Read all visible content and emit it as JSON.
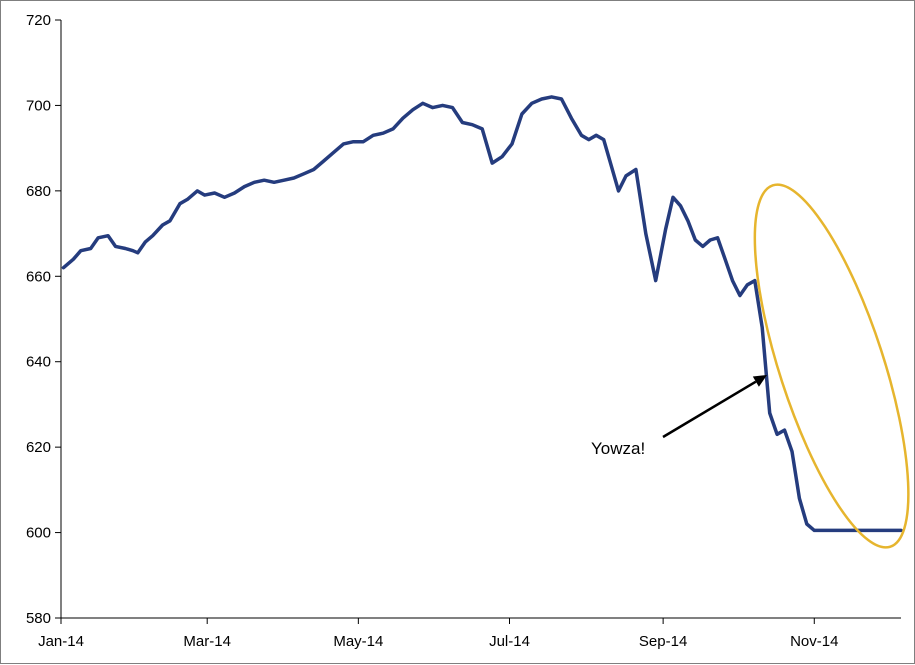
{
  "chart_data": {
    "type": "line",
    "title": "",
    "xlabel": "",
    "ylabel": "",
    "x_tick_labels": [
      "Jan-14",
      "Mar-14",
      "May-14",
      "Jul-14",
      "Sep-14",
      "Nov-14"
    ],
    "x_tick_days": [
      0,
      59,
      120,
      181,
      243,
      304
    ],
    "x_range_days": [
      0,
      339
    ],
    "y_ticks": [
      580,
      600,
      620,
      640,
      660,
      680,
      700,
      720
    ],
    "ylim": [
      580,
      720
    ],
    "grid": false,
    "legend": "none",
    "line_color": "#253C7E",
    "highlight_color": "#E6B52E",
    "annotation": {
      "text": "Yowza!",
      "arrow_color": "#000000"
    },
    "series": [
      {
        "x": [
          "2014-01-02",
          "2014-01-06",
          "2014-01-09",
          "2014-01-13",
          "2014-01-16",
          "2014-01-20",
          "2014-01-23",
          "2014-01-27",
          "2014-01-30",
          "2014-02-01",
          "2014-02-04",
          "2014-02-07",
          "2014-02-11",
          "2014-02-14",
          "2014-02-18",
          "2014-02-21",
          "2014-02-25",
          "2014-02-28",
          "2014-03-04",
          "2014-03-08",
          "2014-03-12",
          "2014-03-16",
          "2014-03-20",
          "2014-03-24",
          "2014-03-28",
          "2014-04-01",
          "2014-04-05",
          "2014-04-09",
          "2014-04-13",
          "2014-04-17",
          "2014-04-21",
          "2014-04-25",
          "2014-04-29",
          "2014-05-03",
          "2014-05-07",
          "2014-05-11",
          "2014-05-15",
          "2014-05-19",
          "2014-05-23",
          "2014-05-27",
          "2014-05-31",
          "2014-06-04",
          "2014-06-08",
          "2014-06-12",
          "2014-06-16",
          "2014-06-20",
          "2014-06-24",
          "2014-06-28",
          "2014-07-02",
          "2014-07-06",
          "2014-07-10",
          "2014-07-14",
          "2014-07-18",
          "2014-07-22",
          "2014-07-26",
          "2014-07-30",
          "2014-08-02",
          "2014-08-05",
          "2014-08-08",
          "2014-08-11",
          "2014-08-14",
          "2014-08-17",
          "2014-08-21",
          "2014-08-25",
          "2014-08-29",
          "2014-09-02",
          "2014-09-05",
          "2014-09-08",
          "2014-09-11",
          "2014-09-14",
          "2014-09-17",
          "2014-09-20",
          "2014-09-23",
          "2014-09-26",
          "2014-09-29",
          "2014-10-02",
          "2014-10-05",
          "2014-10-08",
          "2014-10-11",
          "2014-10-14",
          "2014-10-17",
          "2014-10-20",
          "2014-10-23",
          "2014-10-26",
          "2014-10-29",
          "2014-11-01",
          "2014-11-04",
          "2014-11-07",
          "2014-11-10",
          "2014-11-13",
          "2014-11-16",
          "2014-11-19",
          "2014-11-22",
          "2014-11-25",
          "2014-11-28",
          "2014-12-01",
          "2014-12-04",
          "2014-12-06"
        ],
        "values": [
          662,
          664,
          666,
          666.5,
          669,
          669.5,
          667,
          666.5,
          666,
          665.5,
          668,
          669.5,
          672,
          673,
          677,
          678,
          680,
          679,
          679.5,
          678.5,
          679.5,
          681,
          682,
          682.5,
          682,
          682.5,
          683,
          684,
          685,
          687,
          689,
          691,
          691.5,
          691.5,
          693,
          693.5,
          694.5,
          697,
          699,
          700.5,
          699.5,
          700,
          699.5,
          696,
          695.5,
          694.5,
          686.5,
          688,
          691,
          698,
          700.5,
          701.5,
          702,
          701.5,
          697,
          693,
          692,
          693,
          692,
          686,
          680,
          683.5,
          685,
          670,
          659,
          671,
          678.5,
          676.5,
          673,
          668.5,
          667,
          668.5,
          669,
          664,
          659,
          655.5,
          658,
          659,
          648,
          628,
          623,
          624,
          619,
          608,
          602,
          600.5,
          600.5,
          600.5,
          600.5,
          600.5,
          600.5,
          600.5,
          600.5,
          600.5,
          600.5,
          600.5,
          600.5,
          600.5
        ]
      }
    ]
  }
}
